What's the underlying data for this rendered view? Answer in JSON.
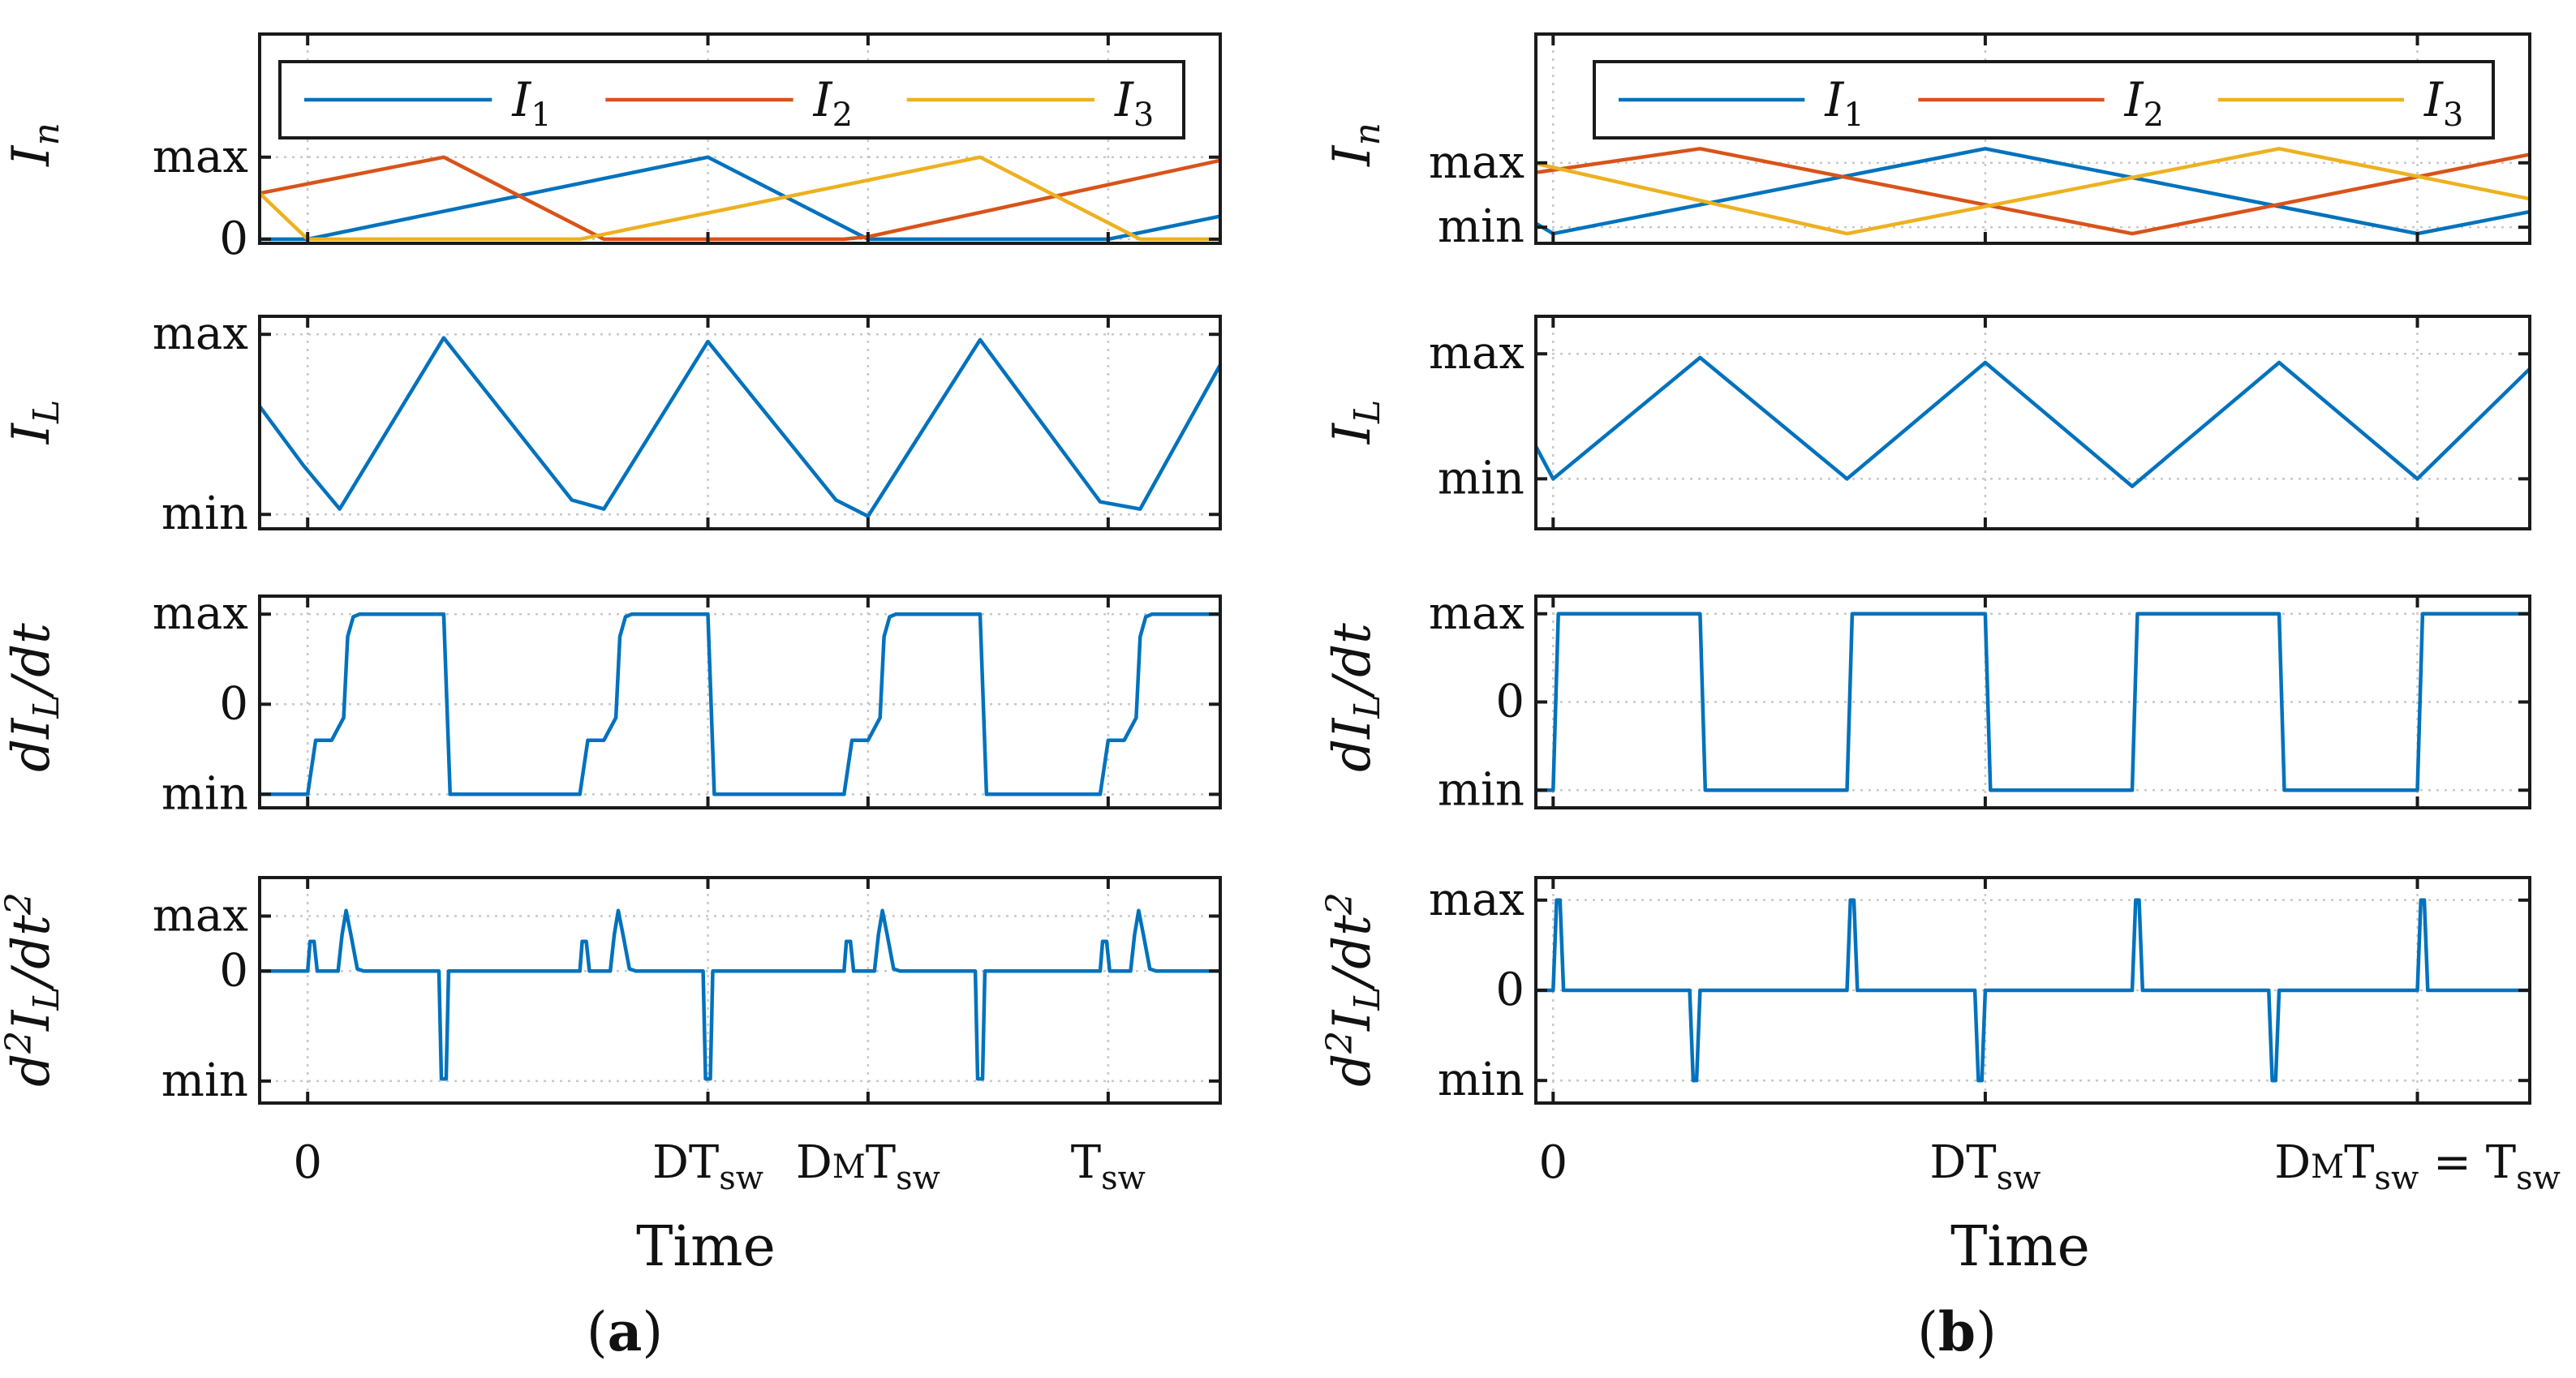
{
  "chart_data": [
    {
      "panel": "(a)",
      "type": "line",
      "xlabel": "Time",
      "x_ticks": [
        {
          "x": 0,
          "base": "0",
          "subs": []
        },
        {
          "x": 0.5,
          "base": "DT",
          "subs": [
            {
              "t": "sw",
              "lower": true
            }
          ]
        },
        {
          "x": 0.7,
          "base": "D",
          "subs": [
            {
              "t": "M",
              "lower": false
            },
            {
              "t": "T",
              "lower": false,
              "plain": true
            },
            {
              "t": "sw",
              "lower": true
            }
          ]
        },
        {
          "x": 1,
          "base": "T",
          "subs": [
            {
              "t": "sw",
              "lower": true
            }
          ]
        }
      ],
      "xlim": [
        -0.06,
        1.14
      ],
      "subplots": [
        {
          "ylabel": "I_n",
          "yticks": [
            {
              "y": 0,
              "label": "0"
            },
            {
              "y": 1,
              "label": "max"
            }
          ],
          "ylim": [
            -0.05,
            2.5
          ],
          "legend": [
            "I_1",
            "I_2",
            "I_3"
          ],
          "series": [
            {
              "name": "I_1",
              "color": "#0072BD",
              "x": [
                -0.06,
                0,
                0.5,
                0.7,
                1,
                1.14
              ],
              "y": [
                0,
                0,
                1,
                0,
                0,
                0.28
              ]
            },
            {
              "name": "I_2",
              "color": "#D95319",
              "x": [
                -0.06,
                0.17,
                0.37,
                0.67,
                0.7,
                1.14
              ],
              "y": [
                0.56,
                1,
                0,
                0,
                0.03,
                0.96
              ]
            },
            {
              "name": "I_3",
              "color": "#EDB120",
              "x": [
                -0.06,
                0.0,
                0.34,
                0.84,
                1.04,
                1.14
              ],
              "y": [
                0.56,
                0,
                0,
                1,
                0,
                0
              ]
            }
          ]
        },
        {
          "ylabel": "I_L",
          "yticks": [
            {
              "y": 0,
              "label": "min"
            },
            {
              "y": 1,
              "label": "max"
            }
          ],
          "ylim": [
            -0.08,
            1.1
          ],
          "series": [
            {
              "name": "",
              "color": "#0072BD",
              "x": [
                -0.06,
                -0.005,
                0.04,
                0.17,
                0.33,
                0.37,
                0.5,
                0.66,
                0.7,
                0.84,
                0.99,
                1.04,
                1.14
              ],
              "y": [
                0.6,
                0.27,
                0.03,
                0.98,
                0.08,
                0.03,
                0.96,
                0.08,
                -0.01,
                0.97,
                0.07,
                0.03,
                0.83
              ]
            }
          ]
        },
        {
          "ylabel": "dI_L/dt",
          "yticks": [
            {
              "y": -1,
              "label": "min"
            },
            {
              "y": 0,
              "label": "0"
            },
            {
              "y": 1,
              "label": "max"
            }
          ],
          "ylim": [
            -1.15,
            1.2
          ],
          "pattern": {
            "type": "step",
            "starts": [
              0,
              0.34,
              0.67,
              0.99
            ],
            "t_ends": [
              0.17,
              0.5,
              0.84
            ]
          }
        },
        {
          "ylabel": "d^2I_L/dt^2",
          "yticks": [
            {
              "y": -1,
              "label": "min"
            },
            {
              "y": 0,
              "label": "0"
            },
            {
              "y": 0.5,
              "label": "max"
            }
          ],
          "ylim": [
            -1.2,
            0.85
          ],
          "pattern": {
            "type": "spikes",
            "starts": [
              0,
              0.34,
              0.67,
              0.99
            ],
            "t_ends": [
              0.17,
              0.5,
              0.84
            ]
          }
        }
      ]
    },
    {
      "panel": "(b)",
      "type": "line",
      "xlabel": "Time",
      "x_ticks": [
        {
          "x": 0,
          "base": "0",
          "subs": []
        },
        {
          "x": 0.5,
          "base": "DT",
          "subs": [
            {
              "t": "sw",
              "lower": true
            }
          ]
        },
        {
          "x": 1,
          "base": "D",
          "subs": [
            {
              "t": "M",
              "lower": false
            },
            {
              "t": "T",
              "lower": false,
              "plain": true
            },
            {
              "t": "sw",
              "lower": true
            },
            {
              "t": " = T",
              "lower": false,
              "plain": true
            },
            {
              "t": "sw",
              "lower": true
            }
          ]
        }
      ],
      "xlim": [
        -0.02,
        1.13
      ],
      "subplots": [
        {
          "ylabel": "I_n",
          "yticks": [
            {
              "y": 0,
              "label": "min"
            },
            {
              "y": 1,
              "label": "max"
            }
          ],
          "ylim": [
            -0.25,
            3.0
          ],
          "legend": [
            "I_1",
            "I_2",
            "I_3"
          ],
          "series": [
            {
              "name": "I_1",
              "color": "#0072BD",
              "x": [
                -0.02,
                0,
                0.5,
                1,
                1.13
              ],
              "y": [
                0.06,
                -0.1,
                1.22,
                -0.1,
                0.24
              ]
            },
            {
              "name": "I_2",
              "color": "#D95319",
              "x": [
                -0.02,
                0.17,
                0.67,
                1.13
              ],
              "y": [
                0.85,
                1.22,
                -0.1,
                1.13
              ]
            },
            {
              "name": "I_3",
              "color": "#EDB120",
              "x": [
                -0.02,
                0.34,
                0.84,
                1.13
              ],
              "y": [
                0.99,
                -0.1,
                1.22,
                0.44
              ]
            }
          ]
        },
        {
          "ylabel": "I_L",
          "yticks": [
            {
              "y": 0,
              "label": "min"
            },
            {
              "y": 1,
              "label": "max"
            }
          ],
          "ylim": [
            -0.4,
            1.3
          ],
          "series": [
            {
              "name": "",
              "color": "#0072BD",
              "x": [
                -0.02,
                0,
                0.17,
                0.34,
                0.5,
                0.67,
                0.84,
                1,
                1.13
              ],
              "y": [
                0.26,
                0,
                0.97,
                0,
                0.93,
                -0.06,
                0.93,
                0,
                0.88
              ]
            }
          ]
        },
        {
          "ylabel": "dI_L/dt",
          "yticks": [
            {
              "y": -1,
              "label": "min"
            },
            {
              "y": 0,
              "label": "0"
            },
            {
              "y": 1,
              "label": "max"
            }
          ],
          "ylim": [
            -1.2,
            1.2
          ],
          "pattern": {
            "type": "square",
            "edges": [
              0,
              0.17,
              0.34,
              0.5,
              0.67,
              0.84,
              1
            ]
          }
        },
        {
          "ylabel": "d^2I_L/dt^2",
          "yticks": [
            {
              "y": -1,
              "label": "min"
            },
            {
              "y": 0,
              "label": "0"
            },
            {
              "y": 1,
              "label": "max"
            }
          ],
          "ylim": [
            -1.25,
            1.25
          ],
          "pattern": {
            "type": "pulses",
            "edges": [
              0,
              0.17,
              0.34,
              0.5,
              0.67,
              0.84,
              1
            ]
          }
        }
      ]
    }
  ]
}
